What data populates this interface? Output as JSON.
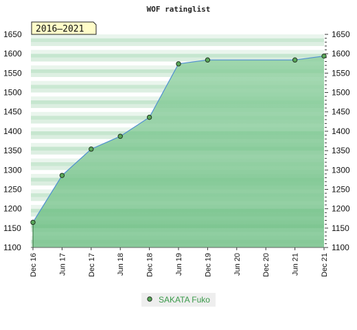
{
  "chart_data": {
    "type": "area",
    "title": "WOF ratinglist",
    "period_label": "2016–2021",
    "ylim": [
      1100,
      1650
    ],
    "yticks": [
      1100,
      1150,
      1200,
      1250,
      1300,
      1350,
      1400,
      1450,
      1500,
      1550,
      1600,
      1650
    ],
    "xticks": [
      "Dec 16",
      "Jun 17",
      "Dec 17",
      "Jun 18",
      "Dec 18",
      "Jun 19",
      "Dec 19",
      "Jun 20",
      "Dec 20",
      "Jun 21",
      "Dec 21"
    ],
    "series": [
      {
        "name": "SAKATA Fuko",
        "color": "#3a9a4a",
        "points": [
          {
            "x": "Dec 16",
            "y": 1165
          },
          {
            "x": "Jun 17",
            "y": 1286
          },
          {
            "x": "Dec 17",
            "y": 1354
          },
          {
            "x": "Jun 18",
            "y": 1387
          },
          {
            "x": "Dec 18",
            "y": 1436
          },
          {
            "x": "Jun 19",
            "y": 1574
          },
          {
            "x": "Dec 19",
            "y": 1584
          },
          {
            "x": "Jun 21",
            "y": 1584
          },
          {
            "x": "Dec 21",
            "y": 1594
          }
        ]
      }
    ],
    "legend_position": "bottom",
    "grid": true
  }
}
